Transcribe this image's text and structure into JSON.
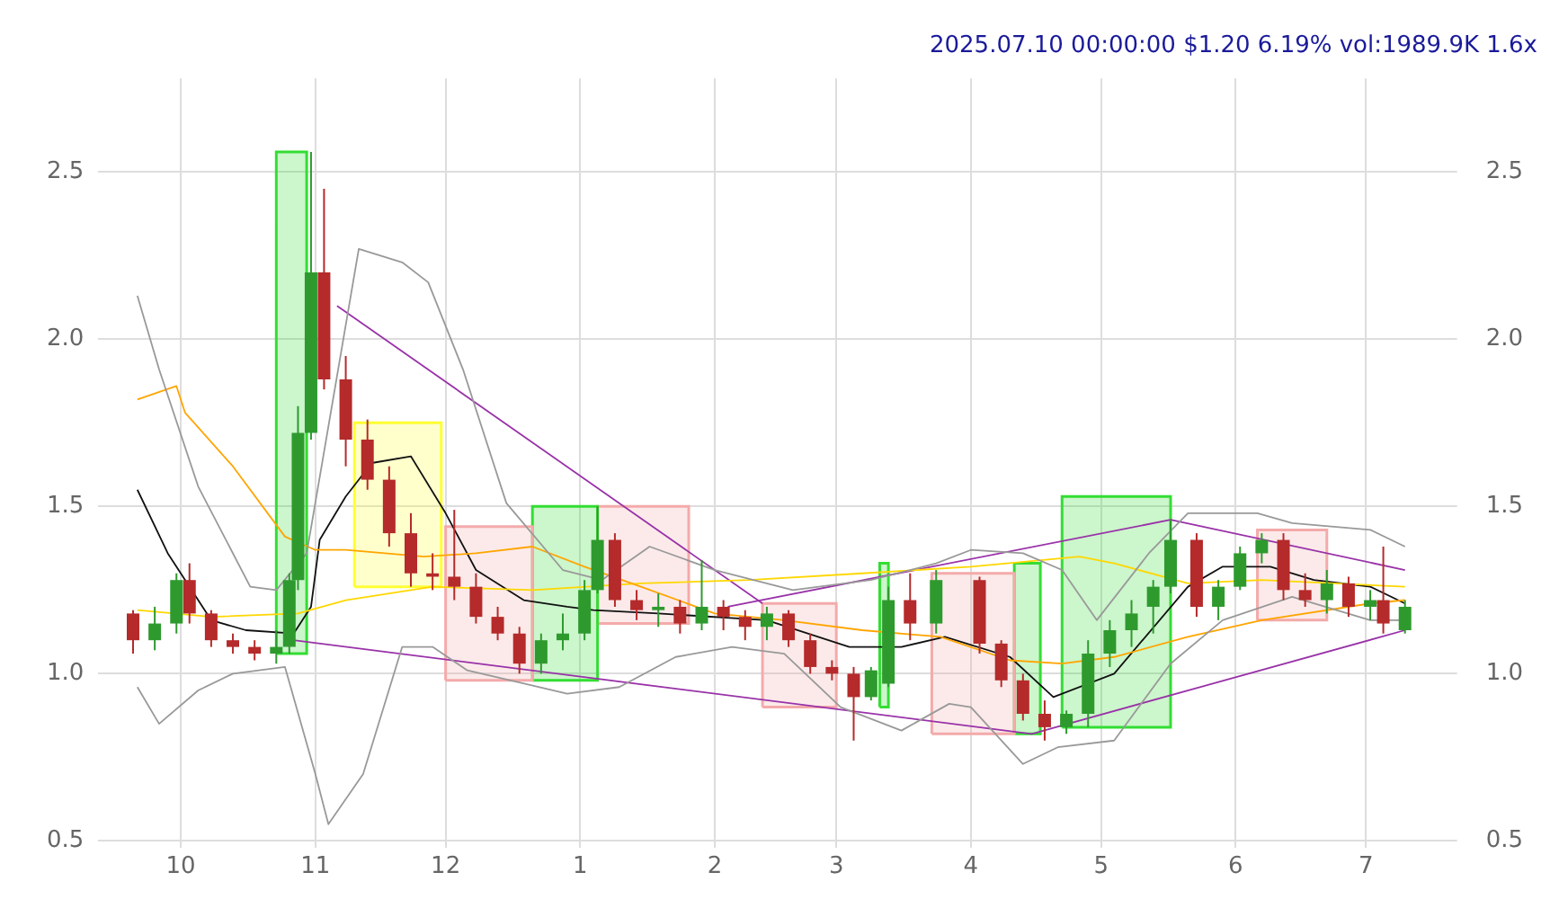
{
  "chart_data": {
    "type": "candlestick",
    "title": "2025.07.10 00:00:00 $1.20 6.19% vol:1989.9K 1.6x",
    "x": [
      "2024-09-20",
      "2024-09-25",
      "2024-09-30",
      "2024-10-03",
      "2024-10-08",
      "2024-10-13",
      "2024-10-18",
      "2024-10-23",
      "2024-10-26",
      "2024-10-28",
      "2024-10-31",
      "2024-11-03",
      "2024-11-08",
      "2024-11-13",
      "2024-11-18",
      "2024-11-23",
      "2024-11-28",
      "2024-12-03",
      "2024-12-08",
      "2024-12-13",
      "2024-12-18",
      "2024-12-23",
      "2024-12-28",
      "2025-01-02",
      "2025-01-05",
      "2025-01-09",
      "2025-01-14",
      "2025-01-19",
      "2025-01-24",
      "2025-01-29",
      "2025-02-03",
      "2025-02-08",
      "2025-02-13",
      "2025-02-18",
      "2025-02-23",
      "2025-02-28",
      "2025-03-05",
      "2025-03-09",
      "2025-03-13",
      "2025-03-18",
      "2025-03-24",
      "2025-04-03",
      "2025-04-08",
      "2025-04-13",
      "2025-04-18",
      "2025-04-23",
      "2025-04-28",
      "2025-05-03",
      "2025-05-08",
      "2025-05-13",
      "2025-05-17",
      "2025-05-23",
      "2025-05-28",
      "2025-06-02",
      "2025-06-07",
      "2025-06-12",
      "2025-06-17",
      "2025-06-22",
      "2025-06-27",
      "2025-07-02",
      "2025-07-05",
      "2025-07-10"
    ],
    "ohlc": [
      [
        1.18,
        1.19,
        1.06,
        1.1
      ],
      [
        1.1,
        1.2,
        1.07,
        1.15
      ],
      [
        1.15,
        1.3,
        1.12,
        1.28
      ],
      [
        1.28,
        1.33,
        1.15,
        1.18
      ],
      [
        1.18,
        1.19,
        1.08,
        1.1
      ],
      [
        1.1,
        1.12,
        1.06,
        1.08
      ],
      [
        1.08,
        1.1,
        1.04,
        1.06
      ],
      [
        1.06,
        1.13,
        1.03,
        1.08
      ],
      [
        1.08,
        1.3,
        1.06,
        1.28
      ],
      [
        1.28,
        1.8,
        1.25,
        1.72
      ],
      [
        1.72,
        2.56,
        1.7,
        2.2
      ],
      [
        2.2,
        2.45,
        1.85,
        1.88
      ],
      [
        1.88,
        1.95,
        1.62,
        1.7
      ],
      [
        1.7,
        1.76,
        1.55,
        1.58
      ],
      [
        1.58,
        1.62,
        1.38,
        1.42
      ],
      [
        1.42,
        1.48,
        1.26,
        1.3
      ],
      [
        1.3,
        1.36,
        1.25,
        1.29
      ],
      [
        1.29,
        1.49,
        1.22,
        1.26
      ],
      [
        1.26,
        1.3,
        1.15,
        1.17
      ],
      [
        1.17,
        1.2,
        1.1,
        1.12
      ],
      [
        1.12,
        1.14,
        1.0,
        1.03
      ],
      [
        1.03,
        1.12,
        1.0,
        1.1
      ],
      [
        1.1,
        1.18,
        1.07,
        1.12
      ],
      [
        1.12,
        1.28,
        1.1,
        1.25
      ],
      [
        1.25,
        1.5,
        1.24,
        1.4
      ],
      [
        1.4,
        1.42,
        1.2,
        1.22
      ],
      [
        1.22,
        1.25,
        1.16,
        1.19
      ],
      [
        1.19,
        1.24,
        1.14,
        1.2
      ],
      [
        1.2,
        1.22,
        1.12,
        1.15
      ],
      [
        1.15,
        1.34,
        1.13,
        1.2
      ],
      [
        1.2,
        1.22,
        1.13,
        1.17
      ],
      [
        1.17,
        1.19,
        1.1,
        1.14
      ],
      [
        1.14,
        1.2,
        1.1,
        1.18
      ],
      [
        1.18,
        1.19,
        1.08,
        1.1
      ],
      [
        1.1,
        1.12,
        1.0,
        1.02
      ],
      [
        1.02,
        1.04,
        0.98,
        1.0
      ],
      [
        1.0,
        1.02,
        0.8,
        0.93
      ],
      [
        0.93,
        1.02,
        0.92,
        1.01
      ],
      [
        0.97,
        1.26,
        0.96,
        1.22
      ],
      [
        1.22,
        1.3,
        1.1,
        1.15
      ],
      [
        1.15,
        1.31,
        1.12,
        1.28
      ],
      [
        1.28,
        1.29,
        1.06,
        1.09
      ],
      [
        1.09,
        1.1,
        0.96,
        0.98
      ],
      [
        0.98,
        1.0,
        0.86,
        0.88
      ],
      [
        0.88,
        0.92,
        0.8,
        0.84
      ],
      [
        0.84,
        0.89,
        0.82,
        0.88
      ],
      [
        0.88,
        1.1,
        0.84,
        1.06
      ],
      [
        1.06,
        1.16,
        1.02,
        1.13
      ],
      [
        1.13,
        1.22,
        1.08,
        1.18
      ],
      [
        1.2,
        1.28,
        1.12,
        1.26
      ],
      [
        1.26,
        1.46,
        1.24,
        1.4
      ],
      [
        1.4,
        1.42,
        1.17,
        1.2
      ],
      [
        1.2,
        1.28,
        1.16,
        1.26
      ],
      [
        1.26,
        1.38,
        1.25,
        1.36
      ],
      [
        1.36,
        1.42,
        1.33,
        1.4
      ],
      [
        1.4,
        1.42,
        1.22,
        1.25
      ],
      [
        1.25,
        1.3,
        1.2,
        1.22
      ],
      [
        1.22,
        1.31,
        1.18,
        1.27
      ],
      [
        1.27,
        1.29,
        1.17,
        1.2
      ],
      [
        1.2,
        1.25,
        1.16,
        1.22
      ],
      [
        1.22,
        1.38,
        1.12,
        1.15
      ],
      [
        1.13,
        1.22,
        1.12,
        1.2
      ]
    ],
    "colors": [
      "#b52a2a",
      "#2e9a2e",
      "#2e9a2e",
      "#b52a2a",
      "#b52a2a",
      "#b52a2a",
      "#b52a2a",
      "#2e9a2e",
      "#2e9a2e",
      "#2e9a2e",
      "#2e9a2e",
      "#b52a2a",
      "#b52a2a",
      "#b52a2a",
      "#b52a2a",
      "#b52a2a",
      "#b52a2a",
      "#b52a2a",
      "#b52a2a",
      "#b52a2a",
      "#b52a2a",
      "#2e9a2e",
      "#2e9a2e",
      "#2e9a2e",
      "#2e9a2e",
      "#b52a2a",
      "#b52a2a",
      "#2e9a2e",
      "#b52a2a",
      "#2e9a2e",
      "#b52a2a",
      "#b52a2a",
      "#2e9a2e",
      "#b52a2a",
      "#b52a2a",
      "#b52a2a",
      "#b52a2a",
      "#2e9a2e",
      "#2e9a2e",
      "#b52a2a",
      "#2e9a2e",
      "#b52a2a",
      "#b52a2a",
      "#b52a2a",
      "#b52a2a",
      "#2e9a2e",
      "#2e9a2e",
      "#2e9a2e",
      "#2e9a2e",
      "#2e9a2e",
      "#2e9a2e",
      "#b52a2a",
      "#2e9a2e",
      "#2e9a2e",
      "#2e9a2e",
      "#b52a2a",
      "#b52a2a",
      "#2e9a2e",
      "#b52a2a",
      "#2e9a2e",
      "#b52a2a",
      "#2e9a2e"
    ],
    "series": [
      {
        "type": "area",
        "color": "#33dd33",
        "x": [
          "2024-10-23",
          "2024-10-23",
          "2024-10-30",
          "2024-10-30",
          "2024-10-23"
        ],
        "values": [
          1.06,
          2.56,
          2.56,
          1.06,
          1.06
        ]
      },
      {
        "type": "area",
        "color": "#ffff33",
        "x": [
          "2024-11-10",
          "2024-11-10",
          "2024-11-30",
          "2024-11-30",
          "2024-11-10"
        ],
        "values": [
          1.26,
          1.75,
          1.75,
          1.26,
          1.26
        ]
      },
      {
        "type": "area",
        "color": "#f4aaaa",
        "x": [
          "2024-12-01",
          "2024-12-01",
          "2024-12-21",
          "2024-12-21",
          "2024-12-01"
        ],
        "values": [
          0.98,
          1.44,
          1.44,
          0.98,
          0.98
        ]
      },
      {
        "type": "area",
        "color": "#33dd33",
        "x": [
          "2024-12-21",
          "2024-12-21",
          "2025-01-05",
          "2025-01-05",
          "2024-12-21"
        ],
        "values": [
          0.98,
          1.5,
          1.5,
          0.98,
          0.98
        ]
      },
      {
        "type": "area",
        "color": "#f4aaaa",
        "x": [
          "2025-01-05",
          "2025-01-05",
          "2025-01-26",
          "2025-01-26",
          "2025-01-05"
        ],
        "values": [
          1.15,
          1.5,
          1.5,
          1.15,
          1.15
        ]
      },
      {
        "type": "area",
        "color": "#f4aaaa",
        "x": [
          "2025-02-12",
          "2025-02-12",
          "2025-03-01",
          "2025-03-01",
          "2025-02-12"
        ],
        "values": [
          0.9,
          1.21,
          1.21,
          0.9,
          0.9
        ]
      },
      {
        "type": "area",
        "color": "#33dd33",
        "x": [
          "2025-03-11",
          "2025-03-11",
          "2025-03-13",
          "2025-03-13",
          "2025-03-11"
        ],
        "values": [
          0.9,
          1.33,
          1.33,
          0.9,
          0.9
        ]
      },
      {
        "type": "area",
        "color": "#f4aaaa",
        "x": [
          "2025-03-23",
          "2025-03-23",
          "2025-04-11",
          "2025-04-11",
          "2025-03-23"
        ],
        "values": [
          0.82,
          1.3,
          1.3,
          0.82,
          0.82
        ]
      },
      {
        "type": "area",
        "color": "#33dd33",
        "x": [
          "2025-04-11",
          "2025-04-11",
          "2025-04-17",
          "2025-04-17",
          "2025-04-11"
        ],
        "values": [
          0.82,
          1.33,
          1.33,
          0.82,
          0.82
        ]
      },
      {
        "type": "area",
        "color": "#33dd33",
        "x": [
          "2025-04-22",
          "2025-04-22",
          "2025-05-17",
          "2025-05-17",
          "2025-04-22"
        ],
        "values": [
          0.84,
          1.53,
          1.53,
          0.84,
          0.84
        ]
      },
      {
        "type": "area",
        "color": "#f4aaaa",
        "x": [
          "2025-06-06",
          "2025-06-06",
          "2025-06-22",
          "2025-06-22",
          "2025-06-06"
        ],
        "values": [
          1.16,
          1.43,
          1.43,
          1.16,
          1.16
        ]
      },
      {
        "type": "line",
        "color": "#999999",
        "x": [
          "2024-09-21",
          "2024-09-26",
          "2024-10-05",
          "2024-10-17",
          "2024-10-23",
          "2024-10-30",
          "2024-11-02",
          "2024-11-11",
          "2024-11-21",
          "2024-11-27",
          "2024-12-05",
          "2024-12-15",
          "2024-12-28",
          "2025-01-06",
          "2025-01-17",
          "2025-02-01",
          "2025-02-19",
          "2025-03-09",
          "2025-03-24",
          "2025-04-01",
          "2025-04-13",
          "2025-04-22",
          "2025-04-30",
          "2025-05-12",
          "2025-05-21",
          "2025-06-06",
          "2025-06-14",
          "2025-07-02",
          "2025-07-10"
        ],
        "values": [
          2.13,
          1.91,
          1.56,
          1.26,
          1.25,
          1.36,
          null,
          2.27,
          2.23,
          2.17,
          1.91,
          1.51,
          1.31,
          1.28,
          1.38,
          1.31,
          1.25,
          1.28,
          1.33,
          1.37,
          1.36,
          1.31,
          1.16,
          1.36,
          1.48,
          1.48,
          1.45,
          1.43,
          1.38
        ]
      },
      {
        "type": "line",
        "color": "#999999",
        "x": [
          "2024-09-21",
          "2024-09-26",
          "2024-10-05",
          "2024-10-13",
          "2024-10-25",
          "2024-11-01",
          "2024-11-04",
          "2024-11-12",
          "2024-11-21",
          "2024-11-28",
          "2024-12-06",
          "2024-12-16",
          "2024-12-29",
          "2025-01-10",
          "2025-01-23",
          "2025-02-05",
          "2025-02-17",
          "2025-03-02",
          "2025-03-16",
          "2025-03-27",
          "2025-04-01",
          "2025-04-13",
          "2025-04-21",
          "2025-05-04",
          "2025-05-17",
          "2025-05-29",
          "2025-06-14",
          "2025-07-02",
          "2025-07-10"
        ],
        "values": [
          0.96,
          0.85,
          0.95,
          1.0,
          1.02,
          0.7,
          0.55,
          0.7,
          1.08,
          1.08,
          1.01,
          0.98,
          0.94,
          0.96,
          1.05,
          1.08,
          1.06,
          0.9,
          0.83,
          0.91,
          0.9,
          0.73,
          0.78,
          0.8,
          1.03,
          1.16,
          1.23,
          1.16,
          1.16
        ]
      },
      {
        "type": "line",
        "color": "#ffa500",
        "x": [
          "2024-09-21",
          "2024-09-30",
          "2024-10-02",
          "2024-10-13",
          "2024-10-25",
          "2024-11-01",
          "2024-11-08",
          "2024-11-26",
          "2024-12-08",
          "2024-12-21",
          "2025-01-02",
          "2025-01-15",
          "2025-02-01",
          "2025-02-17",
          "2025-03-07",
          "2025-03-25",
          "2025-04-10",
          "2025-04-22",
          "2025-05-04",
          "2025-05-21",
          "2025-06-07",
          "2025-07-02",
          "2025-07-10"
        ],
        "values": [
          1.82,
          1.86,
          1.78,
          1.62,
          1.41,
          1.37,
          1.37,
          1.35,
          1.36,
          1.38,
          1.32,
          1.26,
          1.18,
          1.16,
          1.13,
          1.11,
          1.04,
          1.03,
          1.05,
          1.11,
          1.16,
          1.21,
          1.22
        ]
      },
      {
        "type": "line",
        "color": "#ffd700",
        "x": [
          "2024-09-21",
          "2024-10-08",
          "2024-10-28",
          "2024-11-08",
          "2024-11-28",
          "2024-12-21",
          "2025-01-15",
          "2025-02-09",
          "2025-03-07",
          "2025-04-01",
          "2025-04-26",
          "2025-05-04",
          "2025-05-21",
          "2025-06-07",
          "2025-07-10"
        ],
        "values": [
          1.19,
          1.17,
          1.18,
          1.22,
          1.26,
          1.25,
          1.27,
          1.28,
          1.3,
          1.32,
          1.35,
          1.33,
          1.27,
          1.28,
          1.26
        ]
      },
      {
        "type": "line",
        "color": "#111111",
        "x": [
          "2024-09-21",
          "2024-09-28",
          "2024-10-08",
          "2024-10-16",
          "2024-10-27",
          "2024-10-31",
          "2024-11-02",
          "2024-11-08",
          "2024-11-14",
          "2024-11-23",
          "2024-12-01",
          "2024-12-08",
          "2024-12-19",
          "2024-12-29",
          "2025-01-04",
          "2025-01-19",
          "2025-02-13",
          "2025-03-04",
          "2025-03-16",
          "2025-03-26",
          "2025-04-10",
          "2025-04-20",
          "2025-05-04",
          "2025-05-21",
          "2025-05-29",
          "2025-06-09",
          "2025-06-19",
          "2025-07-02",
          "2025-07-10"
        ],
        "values": [
          1.55,
          1.36,
          1.16,
          1.13,
          1.12,
          1.2,
          1.4,
          1.53,
          1.63,
          1.65,
          1.48,
          1.31,
          1.22,
          1.2,
          1.19,
          1.18,
          1.16,
          1.08,
          1.08,
          1.11,
          1.05,
          0.93,
          1.0,
          1.26,
          1.32,
          1.32,
          1.28,
          1.26,
          1.21
        ]
      },
      {
        "type": "line",
        "color": "#9932a8",
        "x": [
          "2024-11-06",
          "2025-02-12"
        ],
        "values": [
          2.1,
          1.21
        ]
      },
      {
        "type": "line",
        "color": "#9932a8",
        "x": [
          "2024-10-27",
          "2025-04-15",
          "2025-07-10"
        ],
        "values": [
          1.1,
          0.82,
          1.13
        ]
      },
      {
        "type": "line",
        "color": "#9932a8",
        "x": [
          "2025-02-04",
          "2025-05-17",
          "2025-07-10"
        ],
        "values": [
          1.2,
          1.46,
          1.31
        ]
      }
    ],
    "xlim": [
      "2024-09-12",
      "2025-07-22"
    ],
    "xticks": [
      {
        "value": "2024-10-01",
        "label": "10"
      },
      {
        "value": "2024-11-01",
        "label": "11"
      },
      {
        "value": "2024-12-01",
        "label": "12"
      },
      {
        "value": "2025-01-01",
        "label": "1"
      },
      {
        "value": "2025-02-01",
        "label": "2"
      },
      {
        "value": "2025-03-01",
        "label": "3"
      },
      {
        "value": "2025-04-01",
        "label": "4"
      },
      {
        "value": "2025-05-01",
        "label": "5"
      },
      {
        "value": "2025-06-01",
        "label": "6"
      },
      {
        "value": "2025-07-01",
        "label": "7"
      }
    ],
    "ylim": [
      0.48,
      2.78
    ],
    "yticks": [
      {
        "value": 0.5,
        "label": "0.5"
      },
      {
        "value": 1.0,
        "label": "1.0"
      },
      {
        "value": 1.5,
        "label": "1.5"
      },
      {
        "value": 2.0,
        "label": "2.0"
      },
      {
        "value": 2.5,
        "label": "2.5"
      }
    ],
    "y2lim": [
      0.48,
      2.78
    ],
    "y2ticks": [
      {
        "value": 0.5,
        "label": "0.5"
      },
      {
        "value": 1.0,
        "label": "1.0"
      },
      {
        "value": 1.5,
        "label": "1.5"
      },
      {
        "value": 2.0,
        "label": "2.0"
      },
      {
        "value": 2.5,
        "label": "2.5"
      }
    ],
    "grid": true,
    "legend": false
  }
}
